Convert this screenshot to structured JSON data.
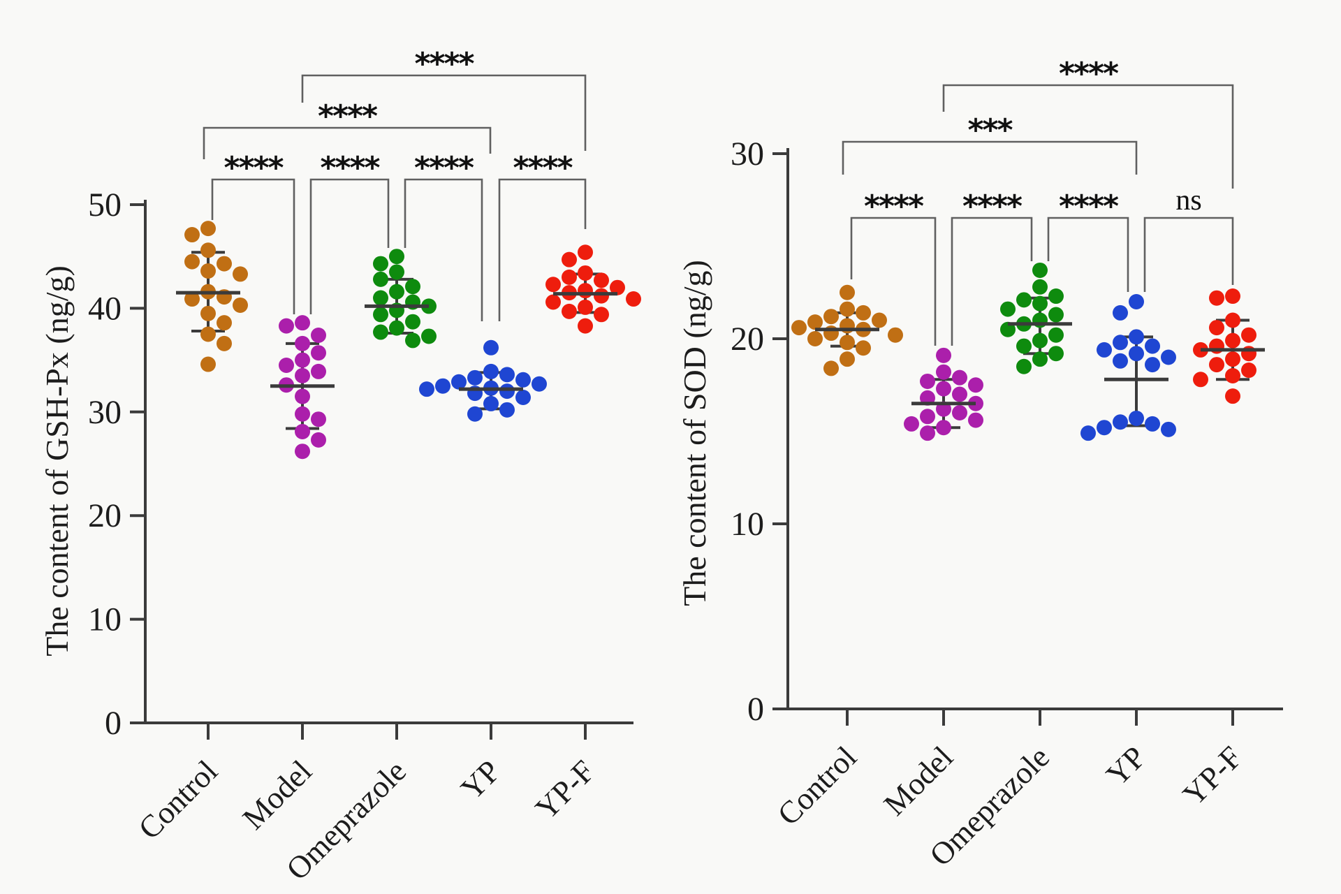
{
  "figure": {
    "background": "#F9F9F7",
    "axis_color": "#3b3b3b",
    "bracket_color": "#606060",
    "sig_color": "#111111"
  },
  "chart_data": [
    {
      "type": "scatter",
      "panel": "gsh-px",
      "ylabel": "The content of GSH-Px (ng/g)",
      "ylim": [
        0,
        50
      ],
      "yticks": [
        0,
        10,
        20,
        30,
        40,
        50
      ],
      "categories": [
        "Control",
        "Model",
        "Omeprazole",
        "YP",
        "YP-F"
      ],
      "series": [
        {
          "name": "Control",
          "color": "#C06F14",
          "values": [
            47.7,
            47.1,
            45.6,
            44.5,
            44.3,
            43.6,
            43.3,
            41.6,
            41.1,
            40.9,
            40.3,
            39.5,
            38.6,
            37.5,
            36.6,
            34.6
          ],
          "mean": 41.5,
          "err_high": 45.4,
          "err_low": 37.8
        },
        {
          "name": "Model",
          "color": "#AB1FAB",
          "values": [
            38.6,
            38.3,
            37.4,
            36.6,
            35.7,
            35.0,
            34.5,
            33.9,
            33.5,
            32.6,
            31.5,
            29.8,
            29.3,
            28.1,
            27.3,
            26.2
          ],
          "mean": 32.5,
          "err_high": 36.6,
          "err_low": 28.4
        },
        {
          "name": "Omeprazole",
          "color": "#0E8B0E",
          "values": [
            45.0,
            44.3,
            43.5,
            42.8,
            42.1,
            41.6,
            41.0,
            40.6,
            40.2,
            39.8,
            39.4,
            38.7,
            38.1,
            37.7,
            37.3,
            36.9
          ],
          "mean": 40.2,
          "err_high": 42.8,
          "err_low": 37.6
        },
        {
          "name": "YP",
          "color": "#1F46D2",
          "values": [
            36.2,
            33.9,
            33.6,
            33.3,
            33.1,
            32.9,
            32.7,
            32.5,
            32.3,
            32.2,
            32.0,
            31.8,
            31.4,
            30.8,
            30.2,
            29.8
          ],
          "mean": 32.2,
          "err_high": 33.8,
          "err_low": 30.3
        },
        {
          "name": "YP-F",
          "color": "#EE1D0D",
          "values": [
            45.4,
            44.7,
            43.4,
            43.0,
            42.7,
            42.3,
            42.0,
            41.7,
            41.5,
            41.2,
            40.9,
            40.6,
            40.1,
            39.7,
            39.4,
            38.3
          ],
          "mean": 41.4,
          "err_high": 43.3,
          "err_low": 39.6
        }
      ],
      "significance": [
        {
          "compare": [
            "Control",
            "Model"
          ],
          "label": "****"
        },
        {
          "compare": [
            "Model",
            "Omeprazole"
          ],
          "label": "****"
        },
        {
          "compare": [
            "Omeprazole",
            "YP"
          ],
          "label": "****"
        },
        {
          "compare": [
            "YP",
            "YP-F"
          ],
          "label": "****"
        },
        {
          "compare": [
            "Control",
            "YP"
          ],
          "label": "****"
        },
        {
          "compare": [
            "Model",
            "YP-F"
          ],
          "label": "****"
        }
      ]
    },
    {
      "type": "scatter",
      "panel": "sod",
      "ylabel": "The content of SOD (ng/g)",
      "ylim": [
        0,
        30
      ],
      "yticks": [
        0,
        10,
        20,
        30
      ],
      "categories": [
        "Control",
        "Model",
        "Omeprazole",
        "YP",
        "YP-F"
      ],
      "series": [
        {
          "name": "Control",
          "color": "#C06F14",
          "values": [
            22.5,
            21.6,
            21.4,
            21.2,
            21.0,
            20.9,
            20.7,
            20.6,
            20.5,
            20.3,
            20.2,
            20.0,
            19.8,
            19.5,
            18.9,
            18.4
          ],
          "mean": 20.5,
          "err_high": 21.4,
          "err_low": 19.6
        },
        {
          "name": "Model",
          "color": "#AB1FAB",
          "values": [
            19.1,
            18.2,
            17.9,
            17.7,
            17.5,
            17.3,
            17.0,
            16.8,
            16.5,
            16.2,
            16.0,
            15.8,
            15.6,
            15.4,
            15.2,
            14.9
          ],
          "mean": 16.5,
          "err_high": 17.8,
          "err_low": 15.2
        },
        {
          "name": "Omeprazole",
          "color": "#0E8B0E",
          "values": [
            23.7,
            22.8,
            22.3,
            22.1,
            21.9,
            21.6,
            21.3,
            21.0,
            20.8,
            20.5,
            20.2,
            19.9,
            19.6,
            19.2,
            18.9,
            18.5
          ],
          "mean": 20.8,
          "err_high": 22.2,
          "err_low": 19.2
        },
        {
          "name": "YP",
          "color": "#1F46D2",
          "values": [
            22.0,
            21.4,
            20.1,
            19.8,
            19.6,
            19.4,
            19.2,
            19.0,
            18.8,
            18.6,
            15.7,
            15.5,
            15.4,
            15.2,
            15.1,
            14.9
          ],
          "mean": 17.8,
          "err_high": 20.1,
          "err_low": 15.3
        },
        {
          "name": "YP-F",
          "color": "#EE1D0D",
          "values": [
            22.3,
            22.2,
            21.0,
            20.6,
            20.2,
            19.9,
            19.6,
            19.4,
            19.2,
            18.9,
            18.6,
            18.3,
            18.0,
            17.8,
            16.9
          ],
          "mean": 19.4,
          "err_high": 21.0,
          "err_low": 17.8
        }
      ],
      "significance": [
        {
          "compare": [
            "Control",
            "Model"
          ],
          "label": "****"
        },
        {
          "compare": [
            "Model",
            "Omeprazole"
          ],
          "label": "****"
        },
        {
          "compare": [
            "Omeprazole",
            "YP"
          ],
          "label": "****"
        },
        {
          "compare": [
            "YP",
            "YP-F"
          ],
          "label": "ns"
        },
        {
          "compare": [
            "Control",
            "YP"
          ],
          "label": "***"
        },
        {
          "compare": [
            "Model",
            "YP-F"
          ],
          "label": "****"
        }
      ]
    }
  ]
}
